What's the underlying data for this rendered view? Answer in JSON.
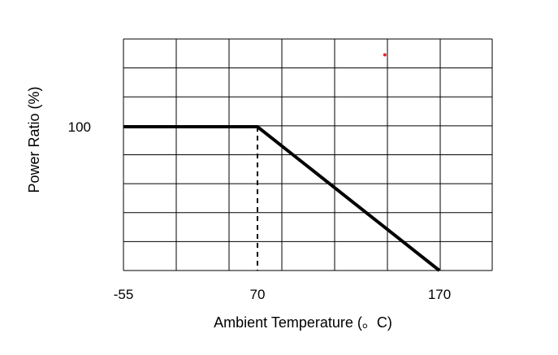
{
  "chart_data": {
    "type": "line",
    "title": "",
    "xlabel": "Ambient Temperature (。C)",
    "ylabel": "Power Ratio (%)",
    "x_ticks": [
      {
        "value": -55,
        "label": "-55"
      },
      {
        "value": 70,
        "label": "70"
      },
      {
        "value": 170,
        "label": "170"
      }
    ],
    "y_ticks": [
      {
        "value": 100,
        "label": "100"
      }
    ],
    "grid": true,
    "series": [
      {
        "points": [
          {
            "x": -55,
            "y": 100
          },
          {
            "x": 70,
            "y": 100
          },
          {
            "x": 170,
            "y": 0
          }
        ],
        "color": "#000000"
      }
    ],
    "reference_lines": [
      {
        "orientation": "vertical",
        "x": 70,
        "from_y": 0,
        "to_y": 100,
        "style": "dashed",
        "color": "#000000"
      }
    ],
    "markers": [
      {
        "x": 140,
        "y": 150,
        "color": "#e8202a"
      }
    ]
  }
}
